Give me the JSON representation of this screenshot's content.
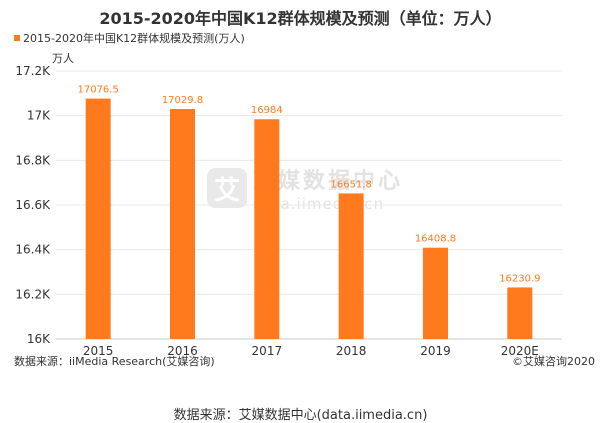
{
  "chart_data": {
    "type": "bar",
    "title": "2015-2020年中国K12群体规模及预测（单位：万人）",
    "categories": [
      "2015",
      "2016",
      "2017",
      "2018",
      "2019",
      "2020E"
    ],
    "series": [
      {
        "name": "2015-2020年中国K12群体规模及预测(万人)",
        "values": [
          17076.5,
          17029.8,
          16984,
          16651.8,
          16408.8,
          16230.9
        ],
        "labels": [
          "17076.5",
          "17029.8",
          "16984",
          "16651.8",
          "16408.8",
          "16230.9"
        ]
      }
    ],
    "ylabel": "万人",
    "ylim": [
      16000,
      17200
    ],
    "yticks": [
      16000,
      16200,
      16400,
      16600,
      16800,
      17000,
      17200
    ],
    "ytick_labels": [
      "16K",
      "16.2K",
      "16.4K",
      "16.6K",
      "16.8K",
      "17K",
      "17.2K"
    ],
    "grid": true,
    "legend": "top-left",
    "bar_color": "#ff7a1c"
  },
  "source": "数据来源：iiMedia Research(艾媒咨询)",
  "copyright": "©艾媒咨询2020",
  "footer": "数据来源：艾媒数据中心(data.iimedia.cn)",
  "watermark": {
    "logo_char": "艾",
    "name": "艾媒数据中心",
    "url": "data.iimedia.cn"
  }
}
